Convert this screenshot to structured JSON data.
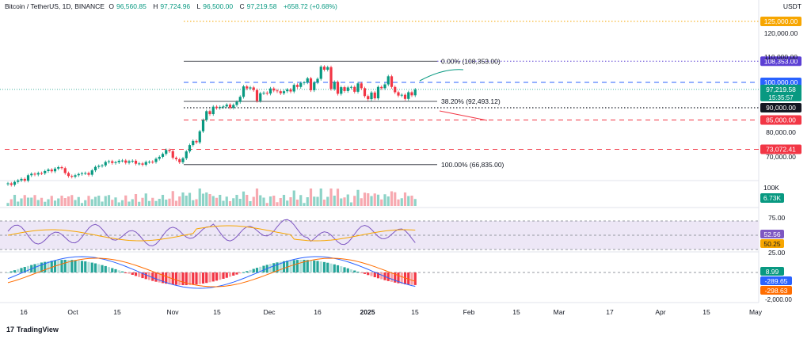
{
  "header": {
    "symbol": "Bitcoin / TetherUS, 1D, BINANCE",
    "o_label": "O",
    "o": "96,560.85",
    "h_label": "H",
    "h": "97,724.96",
    "l_label": "L",
    "l": "96,500.00",
    "c_label": "C",
    "c": "97,219.58",
    "change": "+658.72 (+0.68%)",
    "currency": "USDT"
  },
  "logo": "TradingView",
  "colors": {
    "up": "#089981",
    "down": "#f23645",
    "rsi": "#7e57c2",
    "rsi_ma": "#f7a600",
    "macd": "#2962ff",
    "signal": "#ff6d00",
    "fib": "#131722",
    "orange_line": "#f7a600",
    "blue_dash": "#2962ff",
    "red_dash": "#f23645"
  },
  "chart_data": {
    "type": "candlestick",
    "price_axis": {
      "min": 60000,
      "max": 130000,
      "ticks": [
        "120,000.00",
        "110,000.00",
        "80,000.00",
        "70,000.00"
      ]
    },
    "x_ticks": [
      "16",
      "Oct",
      "15",
      "Nov",
      "15",
      "Dec",
      "16",
      "2025",
      "15",
      "Feb",
      "15",
      "Mar",
      "17",
      "Apr",
      "15",
      "May"
    ],
    "last_price": {
      "value": "97,219.58",
      "countdown": "15:35:57"
    },
    "levels": [
      {
        "label": "125,000.00",
        "value": 125000,
        "color": "#f7a600",
        "style": "dotted"
      },
      {
        "label": "108,353.00",
        "value": 108353,
        "color": "#5b3fd4",
        "style": "dotted"
      },
      {
        "label": "100,000.00",
        "value": 100000,
        "color": "#2962ff",
        "style": "dashed"
      },
      {
        "label": "90,000.00",
        "value": 90000,
        "color": "#131722",
        "style": "dotted"
      },
      {
        "label": "85,000.00",
        "value": 85000,
        "color": "#f23645",
        "style": "dashed"
      },
      {
        "label": "73,072.41",
        "value": 73072.41,
        "color": "#f23645",
        "style": "dashed"
      }
    ],
    "fibonacci": [
      {
        "label": "0.00% (108,353.00)",
        "value": 108353
      },
      {
        "label": "38.20% (92,493.12)",
        "value": 92493.12
      },
      {
        "label": "100.00% (66,835.00)",
        "value": 66835
      }
    ],
    "closes": [
      59200,
      58600,
      59800,
      60400,
      61000,
      60300,
      62500,
      63100,
      62800,
      63400,
      63300,
      64200,
      64800,
      64100,
      65200,
      65800,
      65400,
      63400,
      62200,
      61900,
      62500,
      63000,
      63300,
      63400,
      62700,
      64500,
      65900,
      66300,
      66500,
      67900,
      68200,
      67500,
      67800,
      68400,
      68500,
      67600,
      68200,
      68400,
      67200,
      67300,
      66800,
      67900,
      68000,
      67900,
      69200,
      70000,
      71200,
      72800,
      72300,
      69600,
      69000,
      67800,
      69400,
      72200,
      74800,
      76500,
      75900,
      80400,
      85000,
      88600,
      87400,
      90400,
      89900,
      90300,
      90500,
      91200,
      90000,
      91100,
      92300,
      94300,
      98400,
      97600,
      98000,
      97000,
      92700,
      95700,
      95900,
      95600,
      97600,
      96800,
      96500,
      95700,
      96500,
      97200,
      96400,
      99000,
      98200,
      99700,
      100000,
      101600,
      96900,
      100000,
      101400,
      106200,
      105000,
      106000,
      97400,
      100200,
      95500,
      98100,
      96600,
      98000,
      98200,
      96300,
      99600,
      97700,
      94600,
      93400,
      96000,
      93700,
      98200,
      97700,
      99200,
      102400,
      98200,
      96100,
      94800,
      95100,
      93500,
      96100,
      94900,
      97200
    ],
    "volume_label": "6.73K",
    "volume_tick": "100K",
    "rsi": {
      "ticks": [
        "75.00",
        "25.00"
      ],
      "value": "52.56",
      "ma_value": "50.25"
    },
    "macd": {
      "histogram": "8.99",
      "macd": "-289.65",
      "signal": "-298.63",
      "tick": "-2,000.00"
    }
  }
}
